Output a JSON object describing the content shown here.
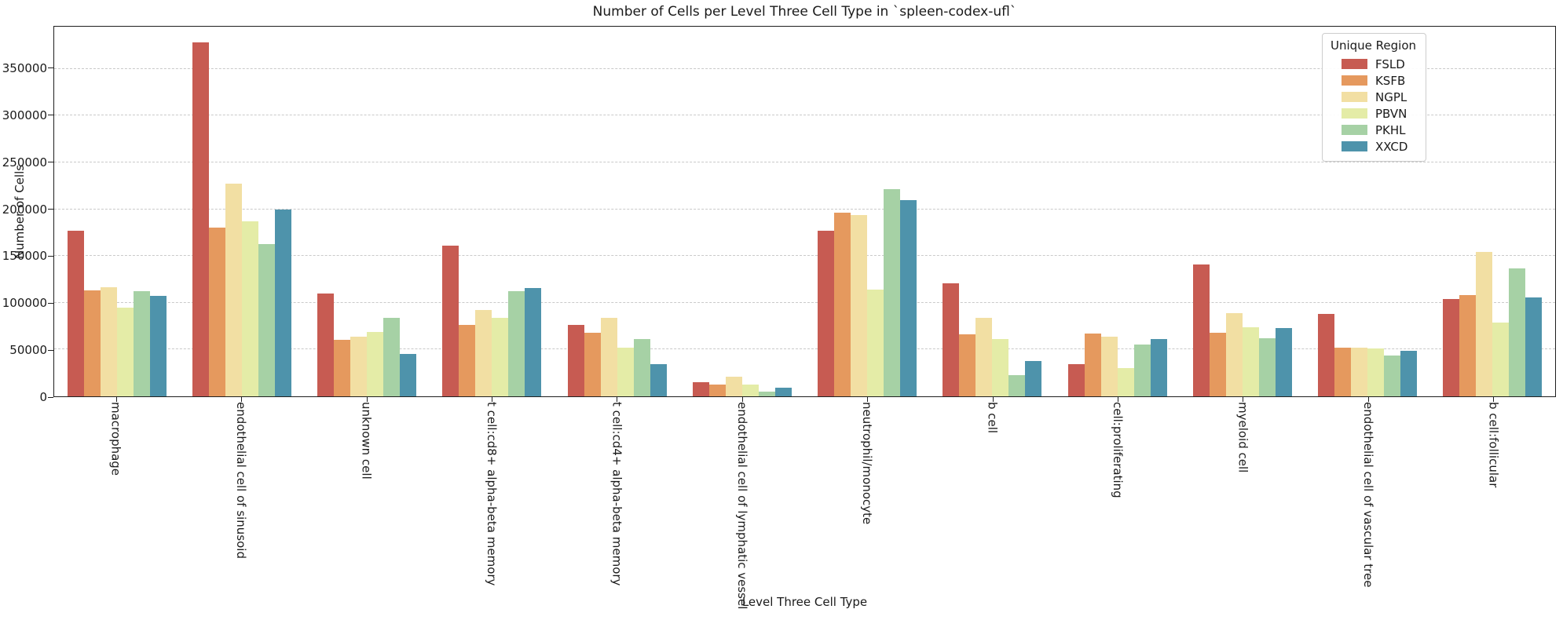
{
  "chart_data": {
    "type": "bar",
    "title": "Number of Cells per Level Three Cell Type in `spleen-codex-ufl`",
    "xlabel": "Level Three Cell Type",
    "ylabel": "Number of Cells",
    "ylim": [
      0,
      395000
    ],
    "yticks": [
      0,
      50000,
      100000,
      150000,
      200000,
      250000,
      300000,
      350000
    ],
    "grid": "horizontal-dashed",
    "legend_title": "Unique Region",
    "legend_position": "top-right-inside",
    "categories": [
      "macrophage",
      "endothelial cell of sinusoid",
      "unknown cell",
      "t cell:cd8+ alpha-beta memory",
      "t cell:cd4+ alpha-beta memory",
      "endothelial cell of lymphatic vessel",
      "neutrophil/monocyte",
      "b cell",
      "cell:proliferating",
      "myeloid cell",
      "endothelial cell of vascular tree",
      "b cell:follicular"
    ],
    "series": [
      {
        "name": "FSLD",
        "color": "#c75b52",
        "values": [
          177000,
          378000,
          110000,
          161000,
          76000,
          15000,
          177000,
          121000,
          34000,
          141000,
          88000,
          104000
        ]
      },
      {
        "name": "KSFB",
        "color": "#e5995e",
        "values": [
          113000,
          180000,
          60000,
          76000,
          68000,
          13000,
          196000,
          66000,
          67000,
          68000,
          52000,
          108000
        ]
      },
      {
        "name": "NGPL",
        "color": "#f2dfa3",
        "values": [
          117000,
          227000,
          64000,
          92000,
          84000,
          21000,
          194000,
          84000,
          64000,
          89000,
          52000,
          154000
        ]
      },
      {
        "name": "PBVN",
        "color": "#e4eca7",
        "values": [
          95000,
          187000,
          69000,
          84000,
          52000,
          13000,
          114000,
          61000,
          30000,
          74000,
          51000,
          79000
        ]
      },
      {
        "name": "PKHL",
        "color": "#a6d1a5",
        "values": [
          112000,
          163000,
          84000,
          112000,
          61000,
          5000,
          221000,
          23000,
          55000,
          62000,
          44000,
          137000
        ]
      },
      {
        "name": "XXCD",
        "color": "#4e93ab",
        "values": [
          107000,
          200000,
          45000,
          116000,
          34000,
          9000,
          210000,
          38000,
          61000,
          73000,
          49000,
          106000
        ]
      }
    ],
    "colors": {
      "grid": "#c9c9c9",
      "spine": "#1f1f1f",
      "background": "#ffffff"
    }
  }
}
